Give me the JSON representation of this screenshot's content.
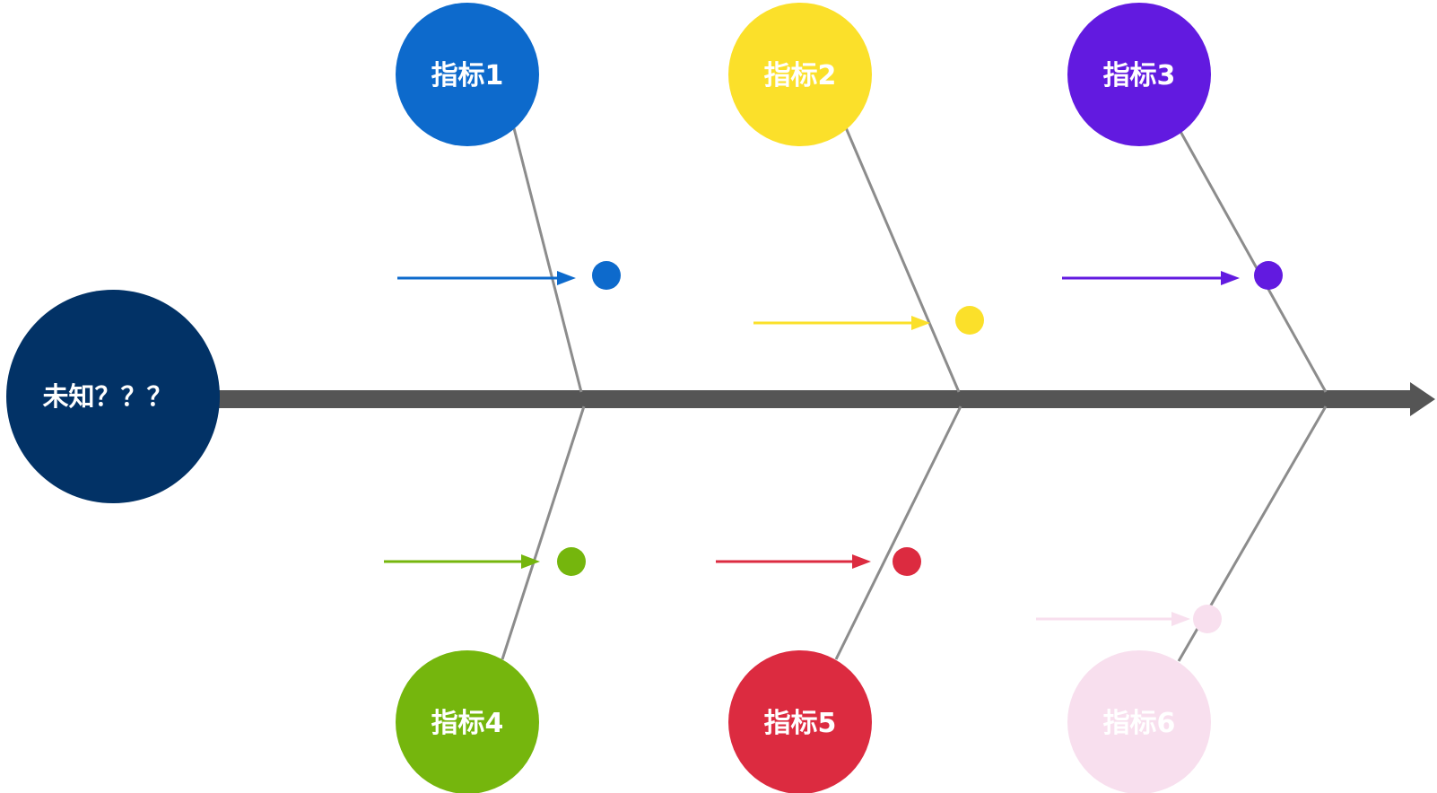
{
  "head": {
    "label": "未知？？？",
    "color": "#023266"
  },
  "spine": {
    "color": "#555555"
  },
  "branch_line_color": "#8c8c8c",
  "indicators": [
    {
      "label": "指标1",
      "color": "#0d6acc",
      "position": "top"
    },
    {
      "label": "指标2",
      "color": "#fbe02a",
      "position": "top"
    },
    {
      "label": "指标3",
      "color": "#621ae0",
      "position": "top"
    },
    {
      "label": "指标4",
      "color": "#75b60d",
      "position": "bottom"
    },
    {
      "label": "指标5",
      "color": "#dc2b40",
      "position": "bottom"
    },
    {
      "label": "指标6",
      "color": "#f8dfee",
      "position": "bottom"
    }
  ]
}
